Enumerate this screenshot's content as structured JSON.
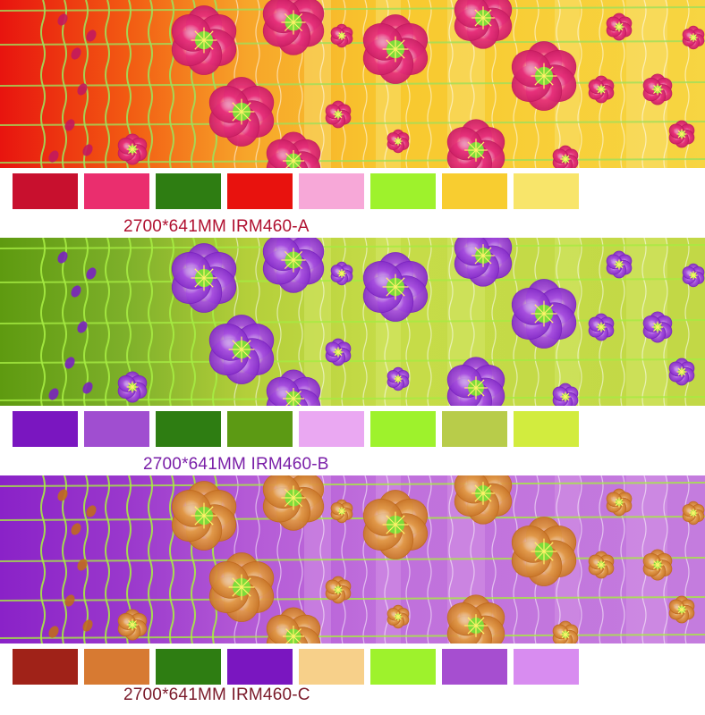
{
  "variants": [
    {
      "id": "A",
      "caption": "2700*641MM IRM460-A",
      "caption_color": "#b01030",
      "background_stops": [
        "#e8140f",
        "#f25a12",
        "#f7a52a",
        "#f8c82e",
        "#f7d542"
      ],
      "stripe_color": "#f9e27a",
      "vine_color": "#9fe05a",
      "petal_color": "#e8317c",
      "petal_shade": "#c21a5e",
      "center_color": "#7ddc3a",
      "swatches": [
        "#c8102e",
        "#ea2e6e",
        "#2e7d12",
        "#e8120e",
        "#f7a8d8",
        "#9ef22c",
        "#f8cd30",
        "#f8e56a"
      ]
    },
    {
      "id": "B",
      "caption": "2700*641MM IRM460-B",
      "caption_color": "#7a1fa8",
      "background_stops": [
        "#5e9a10",
        "#7eb02a",
        "#b4cf3a",
        "#c6dc48",
        "#c2d846"
      ],
      "stripe_color": "#d8e86e",
      "vine_color": "#a6ec42",
      "petal_color": "#a850e0",
      "petal_shade": "#7a22c0",
      "center_color": "#7ddc3a",
      "swatches": [
        "#7a16c0",
        "#a04ed0",
        "#2e7d12",
        "#5c9a14",
        "#eaa8f2",
        "#9ef22c",
        "#b8cc4a",
        "#d2ec3e"
      ]
    },
    {
      "id": "C",
      "caption": "2700*641MM IRM460-C",
      "caption_color": "#7a1a2a",
      "background_stops": [
        "#8a22c8",
        "#9a38cc",
        "#b45ad6",
        "#c070dc",
        "#c47cde"
      ],
      "stripe_color": "#d898e6",
      "vine_color": "#a6ec42",
      "petal_color": "#e29a4a",
      "petal_shade": "#c06a1e",
      "center_color": "#7ddc3a",
      "swatches": [
        "#a02218",
        "#d77a32",
        "#2e7d12",
        "#7a16c0",
        "#f7d08a",
        "#9ef22c",
        "#a64ed0",
        "#d88cf0"
      ]
    }
  ]
}
